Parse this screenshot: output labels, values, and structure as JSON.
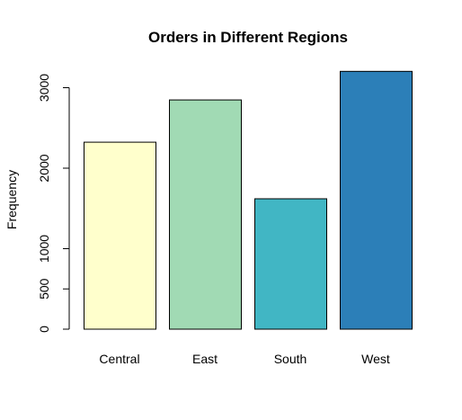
{
  "chart_data": {
    "type": "bar",
    "title": "Orders in Different Regions",
    "xlabel": "",
    "ylabel": "Frequency",
    "categories": [
      "Central",
      "East",
      "South",
      "West"
    ],
    "values": [
      2323,
      2848,
      1620,
      3203
    ],
    "colors": [
      "#ffffcc",
      "#a1dab4",
      "#41b6c4",
      "#2c7fb8"
    ],
    "ylim": [
      0,
      3300
    ],
    "yticks": [
      0,
      500,
      1000,
      2000,
      3000
    ],
    "grid": false,
    "legend": "none"
  }
}
